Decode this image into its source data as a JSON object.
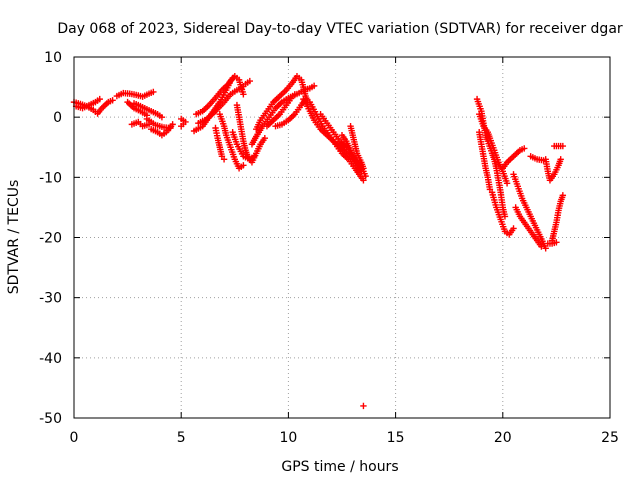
{
  "chart_data": {
    "type": "scatter",
    "title": "Day 068 of 2023, Sidereal Day-to-day VTEC variation (SDTVAR) for receiver dgar",
    "xlabel": "GPS time / hours",
    "ylabel": "SDTVAR / TECUs",
    "xlim": [
      0,
      25
    ],
    "ylim": [
      -50,
      10
    ],
    "xticks": [
      0,
      5,
      10,
      15,
      20,
      25
    ],
    "yticks": [
      10,
      0,
      -10,
      -20,
      -30,
      -40,
      -50
    ],
    "xtick_labels": [
      "0",
      "5",
      "10",
      "15",
      "20",
      "25"
    ],
    "ytick_labels": [
      "10",
      "0",
      "-10",
      "-20",
      "-30",
      "-40",
      "-50"
    ],
    "grid": true,
    "marker": "plus",
    "color": "#ff0000",
    "tracks": [
      {
        "name": "t01",
        "points": [
          [
            0.0,
            2.5
          ],
          [
            0.3,
            2.2
          ],
          [
            0.6,
            1.8
          ],
          [
            0.9,
            1.2
          ],
          [
            1.1,
            0.6
          ],
          [
            1.3,
            1.5
          ],
          [
            1.6,
            2.5
          ],
          [
            1.8,
            2.8
          ]
        ]
      },
      {
        "name": "t02",
        "points": [
          [
            0.1,
            1.8
          ],
          [
            0.4,
            1.5
          ],
          [
            0.7,
            2.0
          ],
          [
            1.0,
            2.5
          ],
          [
            1.2,
            3.0
          ]
        ]
      },
      {
        "name": "t03",
        "points": [
          [
            2.0,
            3.5
          ],
          [
            2.3,
            4.0
          ],
          [
            2.6,
            3.9
          ],
          [
            2.9,
            3.7
          ],
          [
            3.2,
            3.4
          ],
          [
            3.5,
            3.9
          ],
          [
            3.7,
            4.2
          ]
        ]
      },
      {
        "name": "t04",
        "points": [
          [
            2.8,
            2.3
          ],
          [
            3.0,
            2.0
          ],
          [
            3.3,
            1.5
          ],
          [
            3.6,
            1.0
          ],
          [
            3.9,
            0.5
          ],
          [
            4.1,
            0.0
          ]
        ]
      },
      {
        "name": "t05",
        "points": [
          [
            2.5,
            2.5
          ],
          [
            2.8,
            1.5
          ],
          [
            3.1,
            1.0
          ],
          [
            3.4,
            0.3
          ]
        ]
      },
      {
        "name": "t06",
        "points": [
          [
            3.4,
            -0.3
          ],
          [
            3.8,
            -1.3
          ],
          [
            4.2,
            -1.7
          ],
          [
            4.5,
            -1.8
          ]
        ]
      },
      {
        "name": "t07",
        "points": [
          [
            3.6,
            -2.0
          ],
          [
            3.9,
            -2.5
          ],
          [
            4.1,
            -3.0
          ],
          [
            4.3,
            -2.5
          ],
          [
            4.6,
            -1.2
          ]
        ]
      },
      {
        "name": "t08",
        "points": [
          [
            2.7,
            -1.2
          ],
          [
            3.0,
            -0.8
          ],
          [
            3.2,
            -1.5
          ],
          [
            3.5,
            -1.2
          ]
        ]
      },
      {
        "name": "t09",
        "points": [
          [
            5.0,
            -0.3
          ],
          [
            5.2,
            -0.8
          ],
          [
            5.0,
            -1.5
          ]
        ]
      },
      {
        "name": "t10",
        "points": [
          [
            5.6,
            -2.3
          ],
          [
            6.0,
            -1.5
          ],
          [
            6.4,
            0.5
          ],
          [
            6.8,
            2.5
          ],
          [
            7.1,
            4.5
          ],
          [
            7.3,
            6.0
          ],
          [
            7.5,
            6.8
          ],
          [
            7.7,
            6.2
          ],
          [
            7.8,
            5.0
          ],
          [
            7.9,
            3.8
          ]
        ]
      },
      {
        "name": "t11",
        "points": [
          [
            5.7,
            0.5
          ],
          [
            6.0,
            1.0
          ],
          [
            6.3,
            2.0
          ],
          [
            6.6,
            3.2
          ],
          [
            6.9,
            4.5
          ],
          [
            7.2,
            5.5
          ],
          [
            7.4,
            6.5
          ]
        ]
      },
      {
        "name": "t12",
        "points": [
          [
            5.8,
            -1.0
          ],
          [
            6.2,
            -0.3
          ],
          [
            6.6,
            1.0
          ],
          [
            7.0,
            2.5
          ],
          [
            7.3,
            3.8
          ],
          [
            7.6,
            4.5
          ],
          [
            7.8,
            4.8
          ],
          [
            8.0,
            5.5
          ],
          [
            8.2,
            6.0
          ]
        ]
      },
      {
        "name": "t13",
        "points": [
          [
            6.8,
            0.5
          ],
          [
            7.0,
            -1.5
          ],
          [
            7.1,
            -3.0
          ],
          [
            7.3,
            -5.0
          ],
          [
            7.5,
            -7.0
          ],
          [
            7.7,
            -8.5
          ],
          [
            7.9,
            -8.0
          ]
        ]
      },
      {
        "name": "t14",
        "points": [
          [
            6.6,
            -1.8
          ],
          [
            6.7,
            -3.5
          ],
          [
            6.8,
            -5.0
          ],
          [
            6.9,
            -6.5
          ],
          [
            7.0,
            -7.0
          ]
        ]
      },
      {
        "name": "t15",
        "points": [
          [
            7.6,
            2.0
          ],
          [
            7.7,
            0.0
          ],
          [
            7.8,
            -2.0
          ],
          [
            7.9,
            -4.0
          ],
          [
            8.0,
            -5.5
          ],
          [
            8.1,
            -6.5
          ],
          [
            8.3,
            -7.5
          ],
          [
            8.5,
            -6.0
          ],
          [
            8.7,
            -4.5
          ],
          [
            8.9,
            -3.5
          ]
        ]
      },
      {
        "name": "t16",
        "points": [
          [
            7.4,
            -2.5
          ],
          [
            7.6,
            -4.5
          ],
          [
            7.9,
            -6.5
          ],
          [
            8.2,
            -7.0
          ],
          [
            8.4,
            -6.5
          ]
        ]
      },
      {
        "name": "t17",
        "points": [
          [
            8.3,
            -4.5
          ],
          [
            8.5,
            -3.2
          ],
          [
            8.8,
            -1.5
          ],
          [
            9.1,
            0.0
          ],
          [
            9.4,
            1.5
          ],
          [
            9.7,
            2.5
          ],
          [
            10.0,
            3.2
          ],
          [
            10.2,
            3.5
          ],
          [
            10.3,
            3.8
          ]
        ]
      },
      {
        "name": "t18",
        "points": [
          [
            8.5,
            -2.0
          ],
          [
            8.7,
            -0.5
          ],
          [
            9.0,
            1.0
          ],
          [
            9.3,
            2.5
          ],
          [
            9.6,
            3.5
          ],
          [
            9.9,
            4.5
          ],
          [
            10.2,
            5.8
          ],
          [
            10.4,
            6.8
          ],
          [
            10.6,
            6.2
          ],
          [
            10.7,
            5.0
          ],
          [
            10.8,
            3.5
          ],
          [
            10.9,
            2.5
          ]
        ]
      },
      {
        "name": "t19",
        "points": [
          [
            9.0,
            -1.5
          ],
          [
            9.3,
            -0.5
          ],
          [
            9.6,
            0.5
          ],
          [
            9.9,
            2.0
          ],
          [
            10.2,
            3.5
          ],
          [
            10.5,
            4.0
          ],
          [
            10.7,
            4.5
          ],
          [
            11.0,
            4.8
          ],
          [
            11.2,
            5.2
          ]
        ]
      },
      {
        "name": "t20",
        "points": [
          [
            9.4,
            -1.5
          ],
          [
            9.7,
            -1.2
          ],
          [
            10.0,
            -0.5
          ],
          [
            10.3,
            0.5
          ],
          [
            10.6,
            2.0
          ],
          [
            10.8,
            3.0
          ]
        ]
      },
      {
        "name": "t21",
        "points": [
          [
            10.7,
            3.0
          ],
          [
            11.0,
            1.0
          ],
          [
            11.2,
            -0.5
          ],
          [
            11.5,
            -2.0
          ],
          [
            11.8,
            -3.0
          ],
          [
            12.1,
            -4.0
          ],
          [
            12.4,
            -5.0
          ],
          [
            12.7,
            -6.0
          ],
          [
            13.0,
            -7.0
          ],
          [
            13.2,
            -8.0
          ],
          [
            13.4,
            -9.0
          ]
        ]
      },
      {
        "name": "t22",
        "points": [
          [
            11.0,
            2.5
          ],
          [
            11.3,
            0.5
          ],
          [
            11.6,
            -1.5
          ],
          [
            11.9,
            -3.0
          ],
          [
            12.2,
            -4.5
          ],
          [
            12.5,
            -6.0
          ],
          [
            12.8,
            -7.0
          ],
          [
            13.1,
            -8.5
          ],
          [
            13.3,
            -9.5
          ],
          [
            13.5,
            -10.5
          ]
        ]
      },
      {
        "name": "t23",
        "points": [
          [
            11.5,
            0.5
          ],
          [
            11.8,
            -1.0
          ],
          [
            12.1,
            -2.5
          ],
          [
            12.4,
            -4.0
          ],
          [
            12.7,
            -5.0
          ],
          [
            13.0,
            -6.5
          ],
          [
            13.2,
            -7.5
          ],
          [
            13.4,
            -8.5
          ]
        ]
      },
      {
        "name": "t24",
        "points": [
          [
            12.5,
            -3.0
          ],
          [
            12.7,
            -4.0
          ],
          [
            12.9,
            -5.5
          ],
          [
            13.1,
            -7.0
          ],
          [
            13.3,
            -8.0
          ],
          [
            13.5,
            -9.0
          ],
          [
            13.6,
            -9.8
          ]
        ]
      },
      {
        "name": "t25",
        "points": [
          [
            12.9,
            -1.5
          ],
          [
            13.0,
            -3.0
          ],
          [
            13.1,
            -4.5
          ],
          [
            13.2,
            -6.0
          ],
          [
            13.4,
            -7.5
          ],
          [
            13.5,
            -8.5
          ]
        ]
      },
      {
        "name": "t26",
        "points": [
          [
            13.5,
            -48.0
          ]
        ]
      },
      {
        "name": "t27",
        "points": [
          [
            18.8,
            3.0
          ],
          [
            19.0,
            1.0
          ],
          [
            19.1,
            -1.0
          ],
          [
            19.2,
            -3.0
          ],
          [
            19.3,
            -4.0
          ],
          [
            19.5,
            -6.0
          ],
          [
            19.6,
            -7.0
          ],
          [
            19.7,
            -8.5
          ],
          [
            19.8,
            -10.5
          ],
          [
            19.9,
            -12.5
          ],
          [
            20.0,
            -15.0
          ],
          [
            20.1,
            -16.5
          ]
        ]
      },
      {
        "name": "t28",
        "points": [
          [
            18.9,
            0.5
          ],
          [
            19.1,
            -1.5
          ],
          [
            19.3,
            -2.5
          ],
          [
            19.4,
            -3.5
          ],
          [
            19.6,
            -5.5
          ],
          [
            19.8,
            -7.5
          ],
          [
            20.0,
            -9.0
          ],
          [
            20.2,
            -11.0
          ]
        ]
      },
      {
        "name": "t29",
        "points": [
          [
            18.9,
            -2.5
          ],
          [
            19.0,
            -4.5
          ],
          [
            19.1,
            -6.5
          ],
          [
            19.2,
            -8.5
          ],
          [
            19.3,
            -10.0
          ],
          [
            19.4,
            -12.0
          ]
        ]
      },
      {
        "name": "t30",
        "points": [
          [
            19.5,
            -12.5
          ],
          [
            19.7,
            -15.0
          ],
          [
            19.9,
            -17.0
          ],
          [
            20.1,
            -19.0
          ],
          [
            20.3,
            -19.5
          ],
          [
            20.5,
            -18.5
          ]
        ]
      },
      {
        "name": "t31",
        "points": [
          [
            20.0,
            -8.5
          ],
          [
            20.2,
            -7.5
          ],
          [
            20.5,
            -6.5
          ],
          [
            20.8,
            -5.5
          ],
          [
            21.0,
            -5.2
          ]
        ]
      },
      {
        "name": "t32",
        "points": [
          [
            20.5,
            -9.5
          ],
          [
            20.7,
            -11.5
          ],
          [
            20.9,
            -13.5
          ],
          [
            21.1,
            -15.0
          ],
          [
            21.3,
            -16.5
          ],
          [
            21.5,
            -18.0
          ],
          [
            21.7,
            -19.5
          ],
          [
            21.9,
            -21.0
          ],
          [
            22.0,
            -21.8
          ]
        ]
      },
      {
        "name": "t33",
        "points": [
          [
            20.6,
            -15.0
          ],
          [
            20.8,
            -16.5
          ],
          [
            21.0,
            -17.5
          ],
          [
            21.2,
            -18.5
          ],
          [
            21.4,
            -19.5
          ],
          [
            21.6,
            -20.5
          ],
          [
            21.8,
            -21.5
          ]
        ]
      },
      {
        "name": "t34",
        "points": [
          [
            21.3,
            -6.5
          ],
          [
            21.6,
            -7.0
          ],
          [
            21.9,
            -7.2
          ]
        ]
      },
      {
        "name": "t35",
        "points": [
          [
            22.0,
            -7.0
          ],
          [
            22.1,
            -9.0
          ],
          [
            22.2,
            -10.5
          ],
          [
            22.4,
            -9.5
          ],
          [
            22.6,
            -8.0
          ],
          [
            22.7,
            -7.0
          ]
        ]
      },
      {
        "name": "t36",
        "points": [
          [
            22.4,
            -4.8
          ],
          [
            22.6,
            -4.8
          ],
          [
            22.8,
            -4.8
          ]
        ]
      },
      {
        "name": "t37",
        "points": [
          [
            22.3,
            -20.5
          ],
          [
            22.4,
            -19.0
          ],
          [
            22.5,
            -17.5
          ],
          [
            22.6,
            -15.5
          ],
          [
            22.7,
            -14.0
          ],
          [
            22.8,
            -13.0
          ]
        ]
      },
      {
        "name": "t38",
        "points": [
          [
            22.1,
            -21.0
          ],
          [
            22.3,
            -21.0
          ],
          [
            22.5,
            -20.8
          ]
        ]
      }
    ]
  }
}
